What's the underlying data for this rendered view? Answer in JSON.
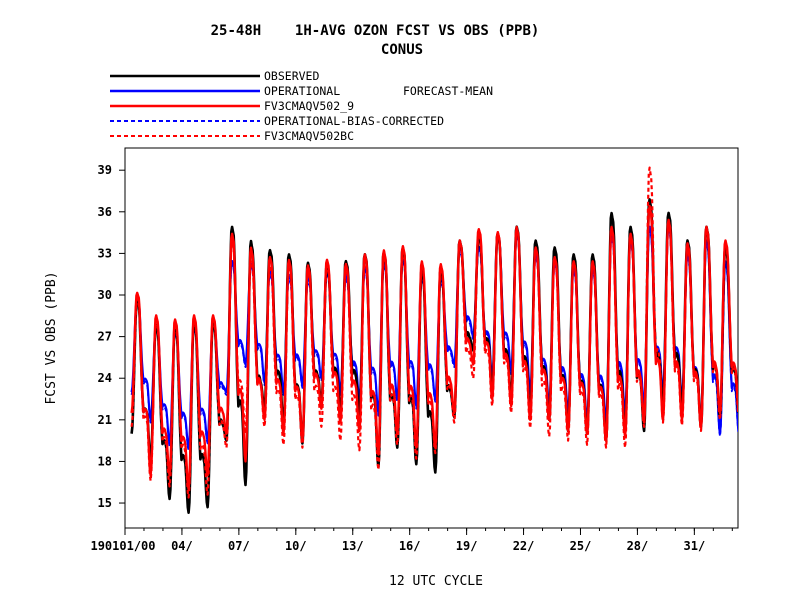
{
  "chart_data": {
    "type": "line",
    "title": "25-48H    1H-AVG OZON FCST VS OBS (PPB)",
    "subtitle": "CONUS",
    "forecast_label": "FORECAST-MEAN",
    "xlabel": "12 UTC CYCLE",
    "ylabel": "FCST VS OBS (PPB)",
    "x_unit": "day of month (01 = 190101/00)",
    "xlim": [
      1,
      33.3
    ],
    "ylim": [
      13.2,
      40.6
    ],
    "y_ticks": [
      15,
      18,
      21,
      24,
      27,
      30,
      33,
      36,
      39
    ],
    "x_ticks": [
      {
        "day": 1,
        "label": "190101/00"
      },
      {
        "day": 4,
        "label": "04/"
      },
      {
        "day": 7,
        "label": "07/"
      },
      {
        "day": 10,
        "label": "10/"
      },
      {
        "day": 13,
        "label": "13/"
      },
      {
        "day": 16,
        "label": "16/"
      },
      {
        "day": 19,
        "label": "19/"
      },
      {
        "day": 22,
        "label": "22/"
      },
      {
        "day": 25,
        "label": "25/"
      },
      {
        "day": 28,
        "label": "28/"
      },
      {
        "day": 31,
        "label": "31/"
      }
    ],
    "daily_cycle_note": "series values are daily max (peak) and min (trough) ozone read from the plot",
    "series": [
      {
        "name": "OBSERVED",
        "color": "#000000",
        "dash": false,
        "width": 2.6,
        "peaks": [
          29.7,
          27.9,
          27.9,
          28.2,
          28.2,
          35.0,
          34.0,
          33.3,
          33.0,
          32.4,
          32.2,
          32.5,
          33.0,
          33.2,
          33.5,
          32.0,
          32.0,
          34.0,
          34.2,
          34.5,
          35.0,
          34.0,
          33.5,
          33.0,
          33.0,
          36.0,
          35.0,
          37.0,
          36.0,
          34.0,
          35.0,
          33.5
        ],
        "troughs": [
          20.0,
          18.0,
          15.3,
          14.3,
          14.7,
          19.5,
          16.3,
          21.8,
          20.6,
          19.3,
          22.2,
          21.5,
          21.3,
          17.6,
          19.0,
          17.8,
          17.2,
          21.2,
          26.0,
          23.0,
          22.5,
          21.4,
          21.0,
          20.2,
          20.0,
          19.5,
          20.0,
          20.2,
          21.8,
          21.6,
          20.5,
          21.2
        ]
      },
      {
        "name": "OPERATIONAL",
        "color": "#0000ff",
        "dash": false,
        "width": 2.2,
        "peaks": [
          29.8,
          27.8,
          27.5,
          27.8,
          28.0,
          32.5,
          32.3,
          31.8,
          31.5,
          31.3,
          31.8,
          31.5,
          32.0,
          32.5,
          32.8,
          31.5,
          31.3,
          33.5,
          33.5,
          34.5,
          34.5,
          33.0,
          32.5,
          32.0,
          32.0,
          34.5,
          34.0,
          35.0,
          35.0,
          33.0,
          34.0,
          32.5
        ],
        "troughs": [
          23.0,
          21.0,
          19.3,
          19.0,
          19.5,
          23.0,
          25.0,
          23.7,
          23.0,
          23.5,
          24.0,
          23.0,
          22.5,
          21.5,
          22.5,
          22.0,
          22.5,
          25.0,
          27.0,
          24.0,
          24.5,
          23.0,
          22.0,
          21.5,
          21.0,
          21.0,
          21.5,
          22.0,
          23.0,
          22.5,
          21.0,
          20.0
        ]
      },
      {
        "name": "FV3CMAQV502_9",
        "color": "#ff0000",
        "dash": false,
        "width": 2.4,
        "peaks": [
          30.2,
          28.6,
          28.3,
          28.6,
          28.6,
          34.5,
          33.5,
          32.8,
          32.6,
          32.2,
          32.6,
          32.3,
          33.0,
          33.3,
          33.6,
          32.5,
          32.3,
          34.0,
          34.8,
          34.6,
          34.9,
          33.5,
          32.8,
          32.5,
          32.5,
          35.0,
          34.5,
          36.5,
          35.5,
          33.8,
          35.0,
          34.0
        ],
        "troughs": [
          21.5,
          17.0,
          17.0,
          16.0,
          17.0,
          20.0,
          18.0,
          21.0,
          20.0,
          19.5,
          21.8,
          20.8,
          20.2,
          18.5,
          20.0,
          19.0,
          19.0,
          21.5,
          25.0,
          22.5,
          22.0,
          21.0,
          21.0,
          20.2,
          20.0,
          19.5,
          19.8,
          20.8,
          21.0,
          21.0,
          20.5,
          21.5
        ]
      },
      {
        "name": "OPERATIONAL-BIAS-CORRECTED",
        "color": "#0000ff",
        "dash": true,
        "width": 1.8,
        "peaks": [
          29.5,
          27.6,
          27.3,
          27.6,
          27.8,
          32.3,
          32.0,
          31.5,
          31.2,
          31.0,
          31.5,
          31.2,
          31.8,
          32.2,
          32.5,
          31.2,
          31.0,
          33.2,
          33.3,
          34.2,
          34.3,
          32.8,
          32.2,
          31.8,
          31.8,
          34.2,
          33.8,
          34.8,
          34.8,
          32.8,
          33.8,
          32.2
        ],
        "troughs": [
          22.8,
          20.8,
          19.1,
          18.8,
          19.3,
          22.8,
          24.8,
          23.5,
          22.8,
          23.3,
          23.8,
          22.8,
          22.3,
          21.3,
          22.3,
          21.8,
          22.3,
          24.8,
          26.8,
          23.8,
          24.3,
          22.8,
          21.8,
          21.3,
          20.8,
          20.8,
          21.3,
          21.8,
          22.8,
          22.3,
          20.8,
          19.8
        ]
      },
      {
        "name": "FV3CMAQV502BC",
        "color": "#ff0000",
        "dash": true,
        "width": 2.2,
        "peaks": [
          29.8,
          28.2,
          28.0,
          28.3,
          28.3,
          34.0,
          32.5,
          32.2,
          32.0,
          31.8,
          32.2,
          32.0,
          32.6,
          33.0,
          33.2,
          32.2,
          32.0,
          33.8,
          34.5,
          34.6,
          35.0,
          33.2,
          32.5,
          32.5,
          32.4,
          34.8,
          34.2,
          39.3,
          35.2,
          33.5,
          34.8,
          33.8
        ],
        "troughs": [
          20.5,
          16.6,
          16.2,
          15.4,
          15.6,
          19.0,
          20.0,
          20.5,
          19.2,
          19.0,
          20.5,
          19.5,
          18.8,
          17.4,
          19.2,
          18.2,
          18.6,
          20.8,
          24.0,
          22.0,
          21.5,
          20.4,
          19.8,
          19.5,
          19.2,
          19.0,
          19.0,
          20.5,
          20.8,
          20.6,
          20.2,
          21.0
        ]
      }
    ]
  }
}
